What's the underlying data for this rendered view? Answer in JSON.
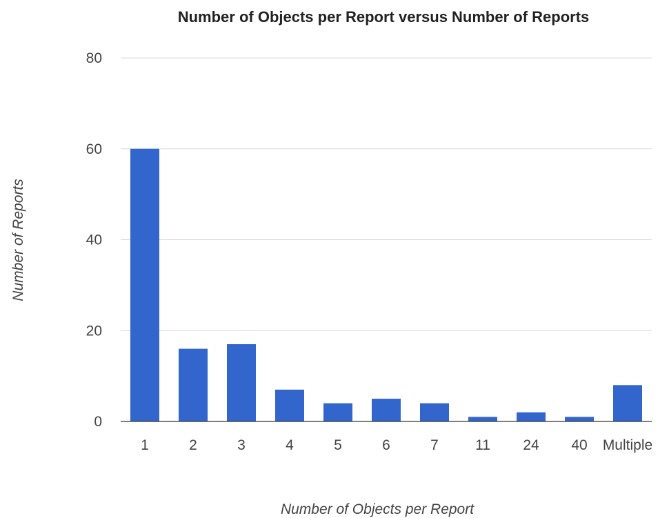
{
  "chart_data": {
    "type": "bar",
    "title": "Number of Objects per Report versus Number of Reports",
    "xlabel": "Number of Objects per Report",
    "ylabel": "Number of Reports",
    "categories": [
      "1",
      "2",
      "3",
      "4",
      "5",
      "6",
      "7",
      "11",
      "24",
      "40",
      "Multiple"
    ],
    "values": [
      60,
      16,
      17,
      7,
      4,
      5,
      4,
      1,
      2,
      1,
      8
    ],
    "ylim": [
      0,
      80
    ],
    "yticks": [
      "0",
      "20",
      "40",
      "60",
      "80"
    ],
    "grid": true,
    "legend": "none",
    "bar_color": "#3366cc"
  }
}
